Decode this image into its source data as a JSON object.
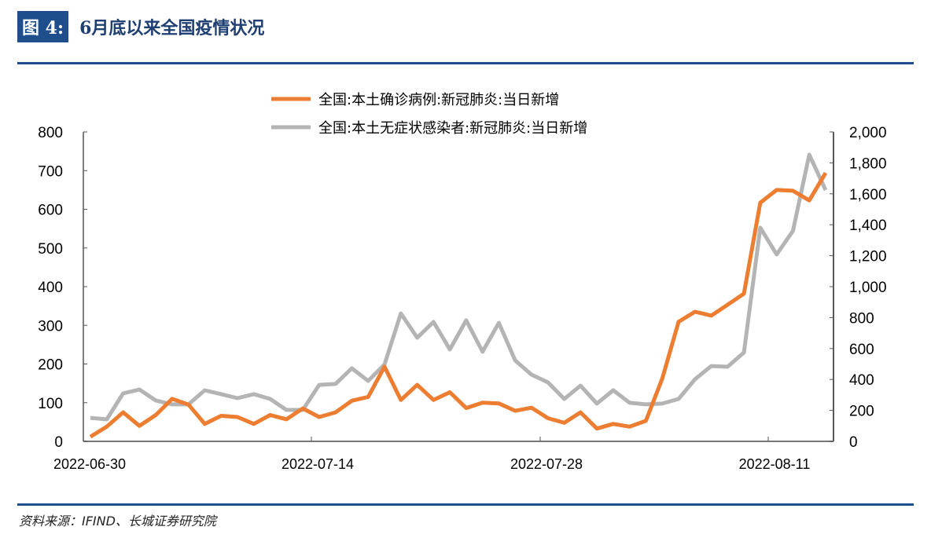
{
  "header": {
    "figure_label": "图 4:",
    "title": "6月底以来全国疫情状况"
  },
  "footer": {
    "source": "资料来源：IFIND、长城证券研究院"
  },
  "chart_data": {
    "type": "line",
    "x": [
      "2022-06-30",
      "2022-07-01",
      "2022-07-02",
      "2022-07-03",
      "2022-07-04",
      "2022-07-05",
      "2022-07-06",
      "2022-07-07",
      "2022-07-08",
      "2022-07-09",
      "2022-07-10",
      "2022-07-11",
      "2022-07-12",
      "2022-07-13",
      "2022-07-14",
      "2022-07-15",
      "2022-07-16",
      "2022-07-17",
      "2022-07-18",
      "2022-07-19",
      "2022-07-20",
      "2022-07-21",
      "2022-07-22",
      "2022-07-23",
      "2022-07-24",
      "2022-07-25",
      "2022-07-26",
      "2022-07-27",
      "2022-07-28",
      "2022-07-29",
      "2022-07-30",
      "2022-07-31",
      "2022-08-01",
      "2022-08-02",
      "2022-08-03",
      "2022-08-04",
      "2022-08-05",
      "2022-08-06",
      "2022-08-07",
      "2022-08-08",
      "2022-08-09",
      "2022-08-10",
      "2022-08-11",
      "2022-08-12",
      "2022-08-13",
      "2022-08-14"
    ],
    "x_tick_labels": [
      "2022-06-30",
      "2022-07-14",
      "2022-07-28",
      "2022-08-11"
    ],
    "series": [
      {
        "name": "全国:本土确诊病例:新冠肺炎:当日新增",
        "axis": "left",
        "color": "#ed7d31",
        "values": [
          12,
          38,
          75,
          40,
          68,
          110,
          95,
          45,
          66,
          63,
          45,
          68,
          57,
          85,
          63,
          75,
          105,
          115,
          193,
          107,
          146,
          107,
          127,
          86,
          100,
          98,
          79,
          87,
          60,
          48,
          75,
          33,
          45,
          38,
          53,
          162,
          309,
          335,
          325,
          353,
          382,
          617,
          650,
          648,
          623,
          694
        ]
      },
      {
        "name": "全国:本土无症状感染者:新冠肺炎:当日新增",
        "axis": "right",
        "color": "#b4b4b4",
        "values": [
          152,
          142,
          310,
          335,
          264,
          239,
          239,
          330,
          305,
          279,
          305,
          274,
          203,
          203,
          365,
          371,
          472,
          391,
          497,
          827,
          670,
          772,
          594,
          782,
          579,
          766,
          523,
          431,
          381,
          274,
          360,
          244,
          330,
          249,
          239,
          244,
          274,
          401,
          487,
          482,
          574,
          1381,
          1208,
          1360,
          1853,
          1624
        ]
      }
    ],
    "ylim_left": [
      0,
      800
    ],
    "yticks_left": [
      "0",
      "100",
      "200",
      "300",
      "400",
      "500",
      "600",
      "700",
      "800"
    ],
    "ylim_right": [
      0,
      2000
    ],
    "yticks_right": [
      "0",
      "200",
      "400",
      "600",
      "800",
      "1,000",
      "1,200",
      "1,400",
      "1,600",
      "1,800",
      "2,000"
    ],
    "legend_position": "top-center",
    "grid": false
  }
}
